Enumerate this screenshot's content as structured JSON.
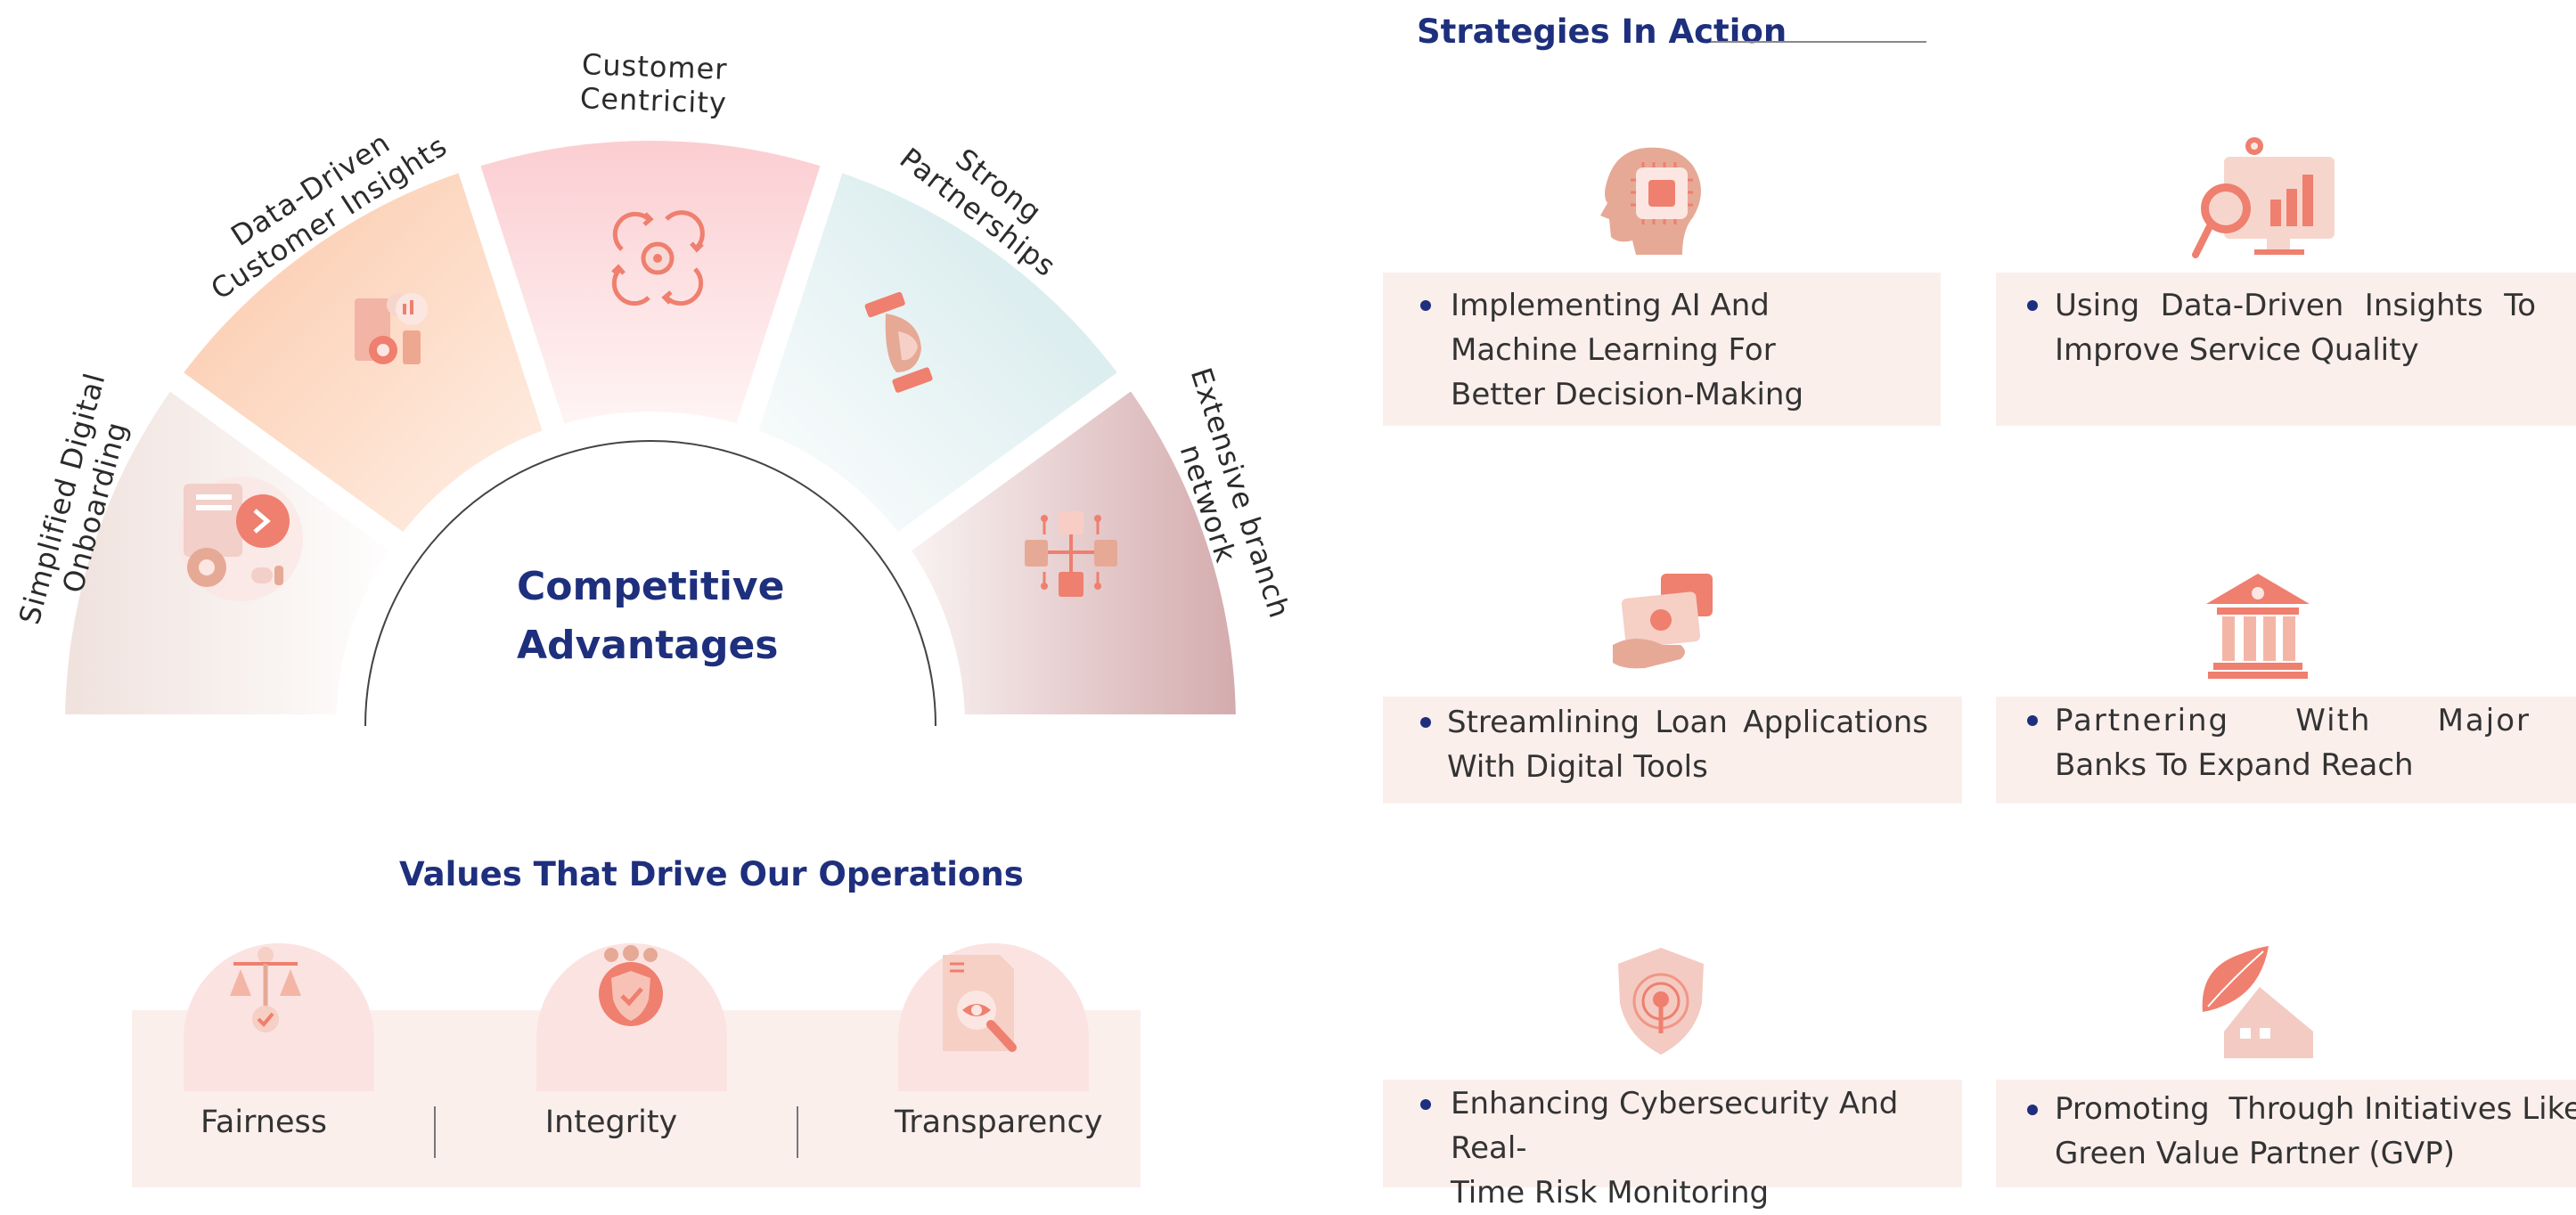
{
  "arc": {
    "center_title_line1": "Competitive",
    "center_title_line2": "Advantages",
    "segments": [
      {
        "label_line1": "Simplified Digital",
        "label_line2": "Onboarding",
        "icon": "digital-onboarding-icon",
        "color": "#e9cfc9"
      },
      {
        "label_line1": "Data-Driven",
        "label_line2": "Customer Insights",
        "icon": "data-insights-icon",
        "color": "#fbc8a8"
      },
      {
        "label_line1": "Customer",
        "label_line2": "Centricity",
        "icon": "customer-cycle-icon",
        "color": "#fbcfd2"
      },
      {
        "label_line1": "Strong",
        "label_line2": "Partnerships",
        "icon": "handshake-icon",
        "color": "#cfe8ea"
      },
      {
        "label_line1": "Extensive branch",
        "label_line2": "network",
        "icon": "network-icon",
        "color": "#d6acae"
      }
    ]
  },
  "values": {
    "title": "Values That Drive Our Operations",
    "items": [
      {
        "label": "Fairness",
        "icon": "scales-icon"
      },
      {
        "label": "Integrity",
        "icon": "shield-team-icon"
      },
      {
        "label": "Transparency",
        "icon": "document-eye-icon"
      }
    ]
  },
  "strategies": {
    "title": "Strategies In Action",
    "items": [
      {
        "lines": [
          "Implementing AI And",
          "Machine Learning For",
          "Better Decision-Making"
        ],
        "icon": "ai-head-icon"
      },
      {
        "lines": [
          "Using Data-Driven Insights To",
          "Improve Service Quality"
        ],
        "icon": "analytics-screen-icon"
      },
      {
        "lines": [
          "Streamlining Loan Applications",
          "With Digital Tools"
        ],
        "icon": "money-hand-icon"
      },
      {
        "lines": [
          "Partnering With Major",
          "Banks To Expand Reach"
        ],
        "icon": "bank-icon"
      },
      {
        "lines": [
          "Enhancing Cybersecurity And Real-",
          "Time Risk Monitoring"
        ],
        "icon": "security-shield-icon"
      },
      {
        "lines": [
          "Promoting  Through Initiatives Like",
          "Green Value Partner (GVP)"
        ],
        "icon": "green-house-icon"
      }
    ]
  },
  "colors": {
    "accent": "#ef7f6e",
    "navy": "#1e2f7d",
    "card_bg": "#fbefec"
  }
}
